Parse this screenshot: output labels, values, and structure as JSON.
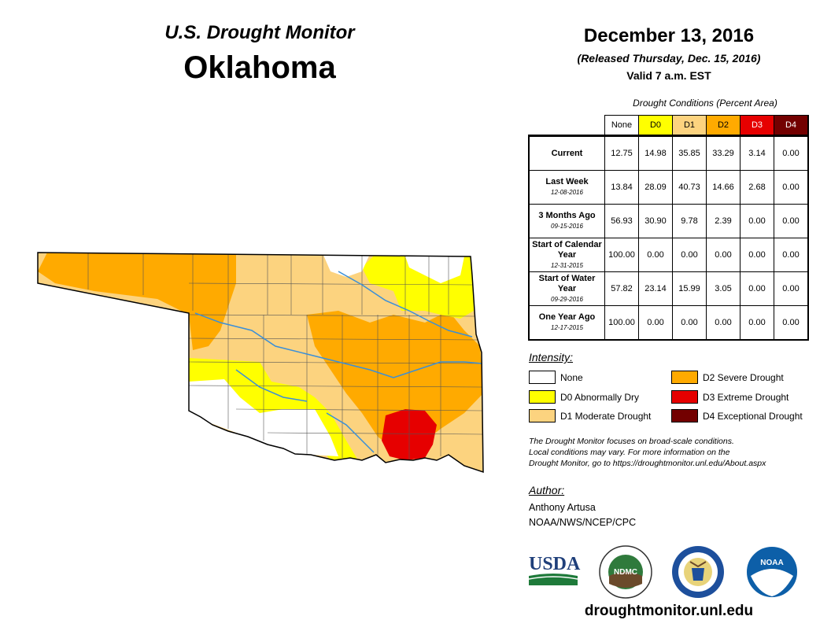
{
  "header": {
    "title": "U.S. Drought Monitor",
    "state": "Oklahoma",
    "date": "December 13, 2016",
    "released": "(Released Thursday, Dec. 15, 2016)",
    "valid": "Valid 7 a.m. EST"
  },
  "table": {
    "caption": "Drought Conditions (Percent Area)",
    "columns": [
      "None",
      "D0",
      "D1",
      "D2",
      "D3",
      "D4"
    ],
    "column_colors": [
      "#ffffff",
      "#ffff00",
      "#fcd37f",
      "#ffaa00",
      "#e60000",
      "#730000"
    ],
    "rows": [
      {
        "label": "Current",
        "date": "",
        "values": [
          "12.75",
          "14.98",
          "35.85",
          "33.29",
          "3.14",
          "0.00"
        ]
      },
      {
        "label": "Last Week",
        "date": "12-08-2016",
        "values": [
          "13.84",
          "28.09",
          "40.73",
          "14.66",
          "2.68",
          "0.00"
        ]
      },
      {
        "label": "3 Months Ago",
        "date": "09-15-2016",
        "values": [
          "56.93",
          "30.90",
          "9.78",
          "2.39",
          "0.00",
          "0.00"
        ]
      },
      {
        "label": "Start of Calendar Year",
        "date": "12-31-2015",
        "values": [
          "100.00",
          "0.00",
          "0.00",
          "0.00",
          "0.00",
          "0.00"
        ]
      },
      {
        "label": "Start of Water Year",
        "date": "09-29-2016",
        "values": [
          "57.82",
          "23.14",
          "15.99",
          "3.05",
          "0.00",
          "0.00"
        ]
      },
      {
        "label": "One Year Ago",
        "date": "12-17-2015",
        "values": [
          "100.00",
          "0.00",
          "0.00",
          "0.00",
          "0.00",
          "0.00"
        ]
      }
    ]
  },
  "legend": {
    "title": "Intensity:",
    "items": [
      {
        "label": "None",
        "color": "#ffffff"
      },
      {
        "label": "D0 Abnormally Dry",
        "color": "#ffff00"
      },
      {
        "label": "D1 Moderate Drought",
        "color": "#fcd37f"
      },
      {
        "label": "D2 Severe Drought",
        "color": "#ffaa00"
      },
      {
        "label": "D3 Extreme Drought",
        "color": "#e60000"
      },
      {
        "label": "D4 Exceptional Drought",
        "color": "#730000"
      }
    ]
  },
  "note": {
    "line1": "The Drought Monitor focuses on broad-scale conditions.",
    "line2": "Local conditions may vary. For more information on the",
    "line3": "Drought Monitor, go to https://droughtmonitor.unl.edu/About.aspx"
  },
  "author": {
    "title": "Author:",
    "name": "Anthony Artusa",
    "org": "NOAA/NWS/NCEP/CPC"
  },
  "logos": {
    "usda": "USDA",
    "ndmc": "NDMC",
    "noaa": "NOAA"
  },
  "website": "droughtmonitor.unl.edu"
}
